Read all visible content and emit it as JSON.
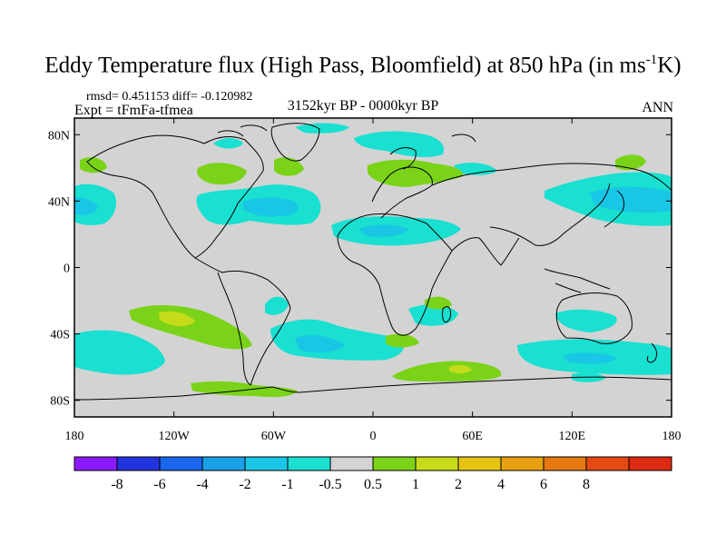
{
  "title": {
    "prefix": "Eddy Temperature flux (High Pass, Bloomfield) at 850 hPa (in ms",
    "superscript": "-1",
    "suffix": "K)"
  },
  "stats": "rmsd= 0.451153 diff= -0.120982",
  "experiment": "Expt = tFmFa-tfmea",
  "period": "3152kyr BP - 0000kyr BP",
  "season": "ANN",
  "map": {
    "projection": "cylindrical equidistant",
    "lon_range": [
      -180,
      180
    ],
    "lat_range": [
      -90,
      90
    ],
    "lat_ticks": [
      {
        "value": 80,
        "label": "80N"
      },
      {
        "value": 40,
        "label": "40N"
      },
      {
        "value": 0,
        "label": "0"
      },
      {
        "value": -40,
        "label": "40S"
      },
      {
        "value": -80,
        "label": "80S"
      }
    ],
    "lon_ticks": [
      {
        "value": -180,
        "label": "180"
      },
      {
        "value": -120,
        "label": "120W"
      },
      {
        "value": -60,
        "label": "60W"
      },
      {
        "value": 0,
        "label": "0"
      },
      {
        "value": 60,
        "label": "60E"
      },
      {
        "value": 120,
        "label": "120E"
      },
      {
        "value": 180,
        "label": "180"
      }
    ]
  },
  "colorbar": {
    "colors": [
      "#8c1aff",
      "#2233dd",
      "#1a66ee",
      "#1aa0e6",
      "#19c6e6",
      "#19e0d0",
      "#d3d3d3",
      "#7ad318",
      "#c6dc1a",
      "#e6c412",
      "#e6a012",
      "#e67812",
      "#e64a12",
      "#dd2a12"
    ],
    "labels": [
      "-8",
      "-6",
      "-4",
      "-2",
      "-1",
      "-0.5",
      "0.5",
      "1",
      "2",
      "4",
      "6",
      "8"
    ]
  },
  "colors": {
    "background": "#d3d3d3",
    "coast": "#000000"
  }
}
